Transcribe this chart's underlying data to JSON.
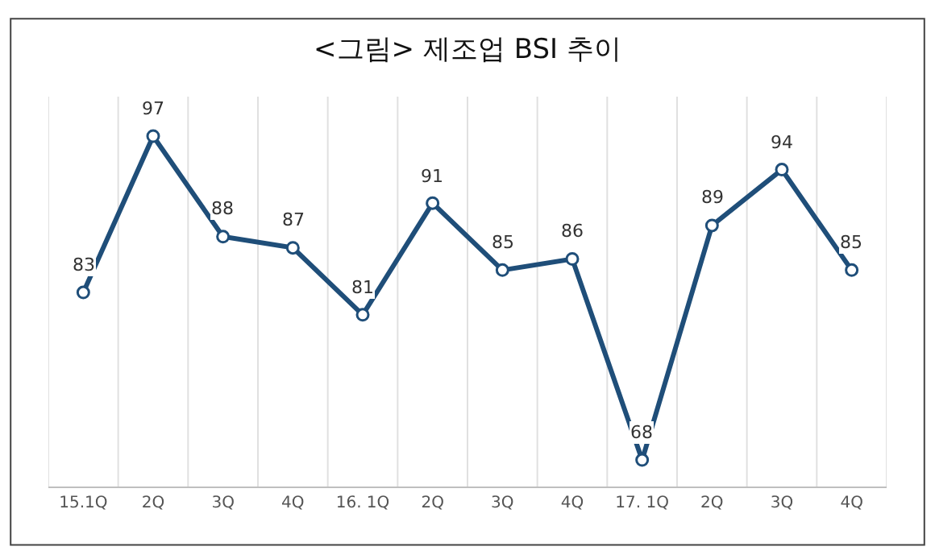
{
  "chart_data": {
    "type": "line",
    "title": "<그림> 제조업 BSI 추이",
    "categories": [
      "15.1Q",
      "2Q",
      "3Q",
      "4Q",
      "16. 1Q",
      "2Q",
      "3Q",
      "4Q",
      "17. 1Q",
      "2Q",
      "3Q",
      "4Q"
    ],
    "series": [
      {
        "color": "#1f4e79",
        "values": [
          83,
          97,
          88,
          87,
          81,
          91,
          85,
          86,
          68,
          89,
          94,
          85
        ]
      }
    ],
    "data_labels": true,
    "marker": "circle",
    "line_style": "solid",
    "grid": "x",
    "legend": false,
    "tick_labels": "x"
  }
}
